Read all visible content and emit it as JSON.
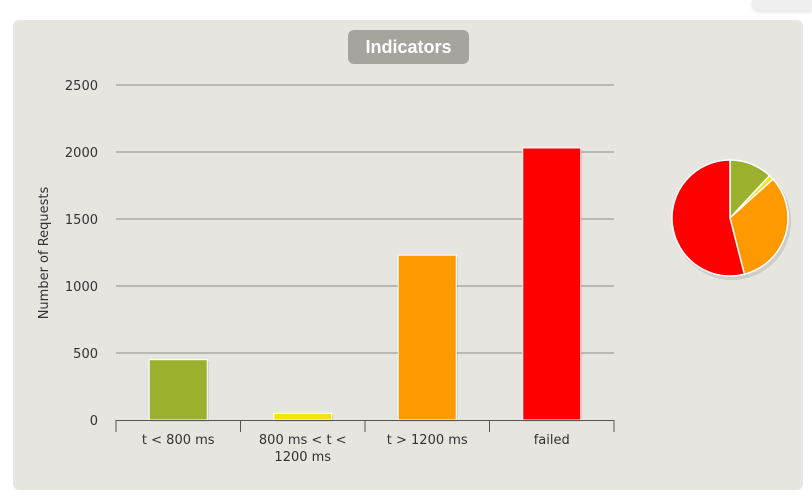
{
  "chart_data": [
    {
      "type": "bar",
      "title": "Indicators",
      "ylabel": "Number of Requests",
      "ylim": [
        0,
        2500
      ],
      "yticks": [
        0,
        500,
        1000,
        1500,
        2000,
        2500
      ],
      "grid": true,
      "categories": [
        [
          "t < 800 ms"
        ],
        [
          "800 ms < t <",
          "1200 ms"
        ],
        [
          "t > 1200 ms"
        ],
        [
          "failed"
        ]
      ],
      "values": [
        450,
        50,
        1230,
        2030
      ],
      "colors": [
        "#9bb02c",
        "#f5e214",
        "#ff9900",
        "#ff0000"
      ]
    },
    {
      "type": "pie",
      "values": [
        450,
        50,
        1230,
        2030
      ],
      "colors": [
        "#9bb02c",
        "#f5e214",
        "#ff9900",
        "#ff0000"
      ]
    }
  ]
}
